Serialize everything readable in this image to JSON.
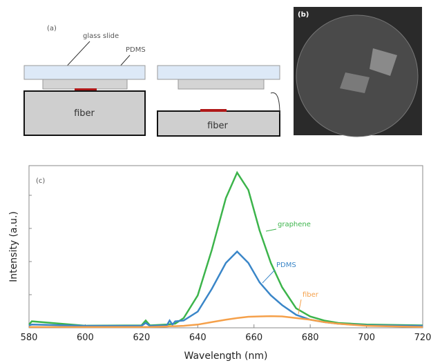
{
  "panel_a": {
    "label": "(a)",
    "glass_slide": "glass slide",
    "pdms": "PDMS",
    "fiber_left": "fiber",
    "fiber_right": "fiber"
  },
  "panel_b": {
    "label": "(b)"
  },
  "chart_data": {
    "type": "line",
    "panel_label": "(c)",
    "x_label": "Wavelength (nm)",
    "y_label": "Intensity (a.u.)",
    "x": [
      580,
      581,
      600,
      620,
      621.5,
      623,
      629,
      630,
      631,
      632,
      635,
      640,
      645,
      650,
      654,
      658,
      662,
      666,
      670,
      675,
      680,
      685,
      690,
      700,
      720
    ],
    "series": [
      {
        "name": "graphene",
        "color": "#3cb44b",
        "values": [
          0.02,
          0.04,
          0.013,
          0.015,
          0.045,
          0.015,
          0.02,
          0.022,
          0.024,
          0.026,
          0.06,
          0.2,
          0.48,
          0.8,
          0.957,
          0.85,
          0.6,
          0.4,
          0.25,
          0.12,
          0.07,
          0.045,
          0.03,
          0.02,
          0.015
        ]
      },
      {
        "name": "PDMS",
        "color": "#3a86c8",
        "values": [
          0.015,
          0.02,
          0.012,
          0.012,
          0.03,
          0.012,
          0.015,
          0.045,
          0.02,
          0.04,
          0.045,
          0.1,
          0.24,
          0.4,
          0.47,
          0.4,
          0.28,
          0.2,
          0.14,
          0.08,
          0.05,
          0.035,
          0.025,
          0.015,
          0.012
        ]
      },
      {
        "name": "fiber",
        "color": "#f5a04a",
        "values": [
          0.005,
          0.005,
          0.005,
          0.005,
          0.005,
          0.005,
          0.008,
          0.01,
          0.01,
          0.01,
          0.012,
          0.02,
          0.035,
          0.05,
          0.06,
          0.068,
          0.07,
          0.072,
          0.07,
          0.06,
          0.05,
          0.035,
          0.025,
          0.012,
          0.005
        ]
      }
    ],
    "xlim": [
      580,
      720
    ],
    "xticks": [
      580,
      600,
      620,
      640,
      660,
      680,
      700,
      720
    ],
    "ylim": [
      0,
      1
    ]
  }
}
